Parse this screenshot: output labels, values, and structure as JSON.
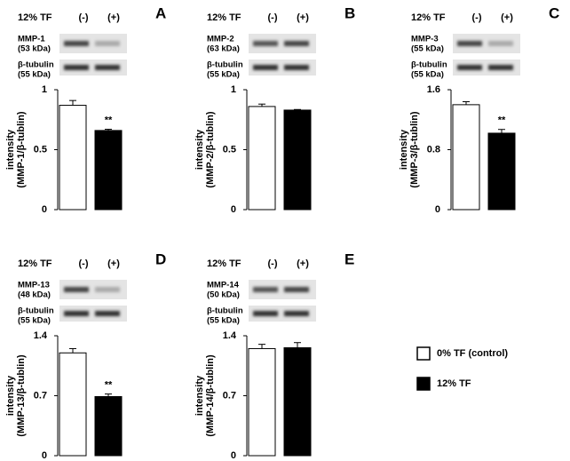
{
  "legend": [
    {
      "name": "0% TF (control)",
      "color": "#ffffff"
    },
    {
      "name": "12% TF",
      "color": "#000000"
    }
  ],
  "chart_data": [
    {
      "type": "bar",
      "panel": "A",
      "treatment": "12% TF",
      "lanes": [
        "(-)",
        "(+)"
      ],
      "blots": [
        {
          "label": "MMP-1",
          "sublabel": "(53 kDa)"
        },
        {
          "label": "β-tubulin",
          "sublabel": "(55 kDa)"
        }
      ],
      "ylabel": [
        "intensity",
        "(MMP-1/β-tublin)"
      ],
      "ylim": [
        0,
        1
      ],
      "yticks": [
        0,
        0.5,
        1
      ],
      "values": [
        0.87,
        0.66
      ],
      "errors": [
        0.04,
        0.01
      ],
      "colors": [
        "#ffffff",
        "#000000"
      ],
      "annotations": [
        null,
        "**"
      ]
    },
    {
      "type": "bar",
      "panel": "B",
      "treatment": "12% TF",
      "lanes": [
        "(-)",
        "(+)"
      ],
      "blots": [
        {
          "label": "MMP-2",
          "sublabel": "(63 kDa)"
        },
        {
          "label": "β-tubulin",
          "sublabel": "(55 kDa)"
        }
      ],
      "ylabel": [
        "intensity",
        "(MMP-2/β-tublin)"
      ],
      "ylim": [
        0,
        1
      ],
      "yticks": [
        0,
        0.5,
        1
      ],
      "values": [
        0.86,
        0.83
      ],
      "errors": [
        0.02,
        0.005
      ],
      "colors": [
        "#ffffff",
        "#000000"
      ],
      "annotations": [
        null,
        null
      ]
    },
    {
      "type": "bar",
      "panel": "C",
      "treatment": "12% TF",
      "lanes": [
        "(-)",
        "(+)"
      ],
      "blots": [
        {
          "label": "MMP-3",
          "sublabel": "(55 kDa)"
        },
        {
          "label": "β-tubulin",
          "sublabel": "(55 kDa)"
        }
      ],
      "ylabel": [
        "intensity",
        "(MMP-3/β-tublin)"
      ],
      "ylim": [
        0,
        1.6
      ],
      "yticks": [
        0,
        0.8,
        1.6
      ],
      "values": [
        1.4,
        1.02
      ],
      "errors": [
        0.04,
        0.05
      ],
      "colors": [
        "#ffffff",
        "#000000"
      ],
      "annotations": [
        null,
        "**"
      ]
    },
    {
      "type": "bar",
      "panel": "D",
      "treatment": "12% TF",
      "lanes": [
        "(-)",
        "(+)"
      ],
      "blots": [
        {
          "label": "MMP-13",
          "sublabel": "(48 kDa)"
        },
        {
          "label": "β-tubulin",
          "sublabel": "(55 kDa)"
        }
      ],
      "ylabel": [
        "intensity",
        "(MMP-13/β-tublin)"
      ],
      "ylim": [
        0,
        1.4
      ],
      "yticks": [
        0,
        0.7,
        1.4
      ],
      "values": [
        1.2,
        0.69
      ],
      "errors": [
        0.05,
        0.03
      ],
      "colors": [
        "#ffffff",
        "#000000"
      ],
      "annotations": [
        null,
        "**"
      ]
    },
    {
      "type": "bar",
      "panel": "E",
      "treatment": "12% TF",
      "lanes": [
        "(-)",
        "(+)"
      ],
      "blots": [
        {
          "label": "MMP-14",
          "sublabel": "(50 kDa)"
        },
        {
          "label": "β-tubulin",
          "sublabel": "(55 kDa)"
        }
      ],
      "ylabel": [
        "intensity",
        "(MMP-14/β-tublin)"
      ],
      "ylim": [
        0,
        1.4
      ],
      "yticks": [
        0,
        0.7,
        1.4
      ],
      "values": [
        1.25,
        1.26
      ],
      "errors": [
        0.05,
        0.06
      ],
      "colors": [
        "#ffffff",
        "#000000"
      ],
      "annotations": [
        null,
        null
      ]
    }
  ]
}
